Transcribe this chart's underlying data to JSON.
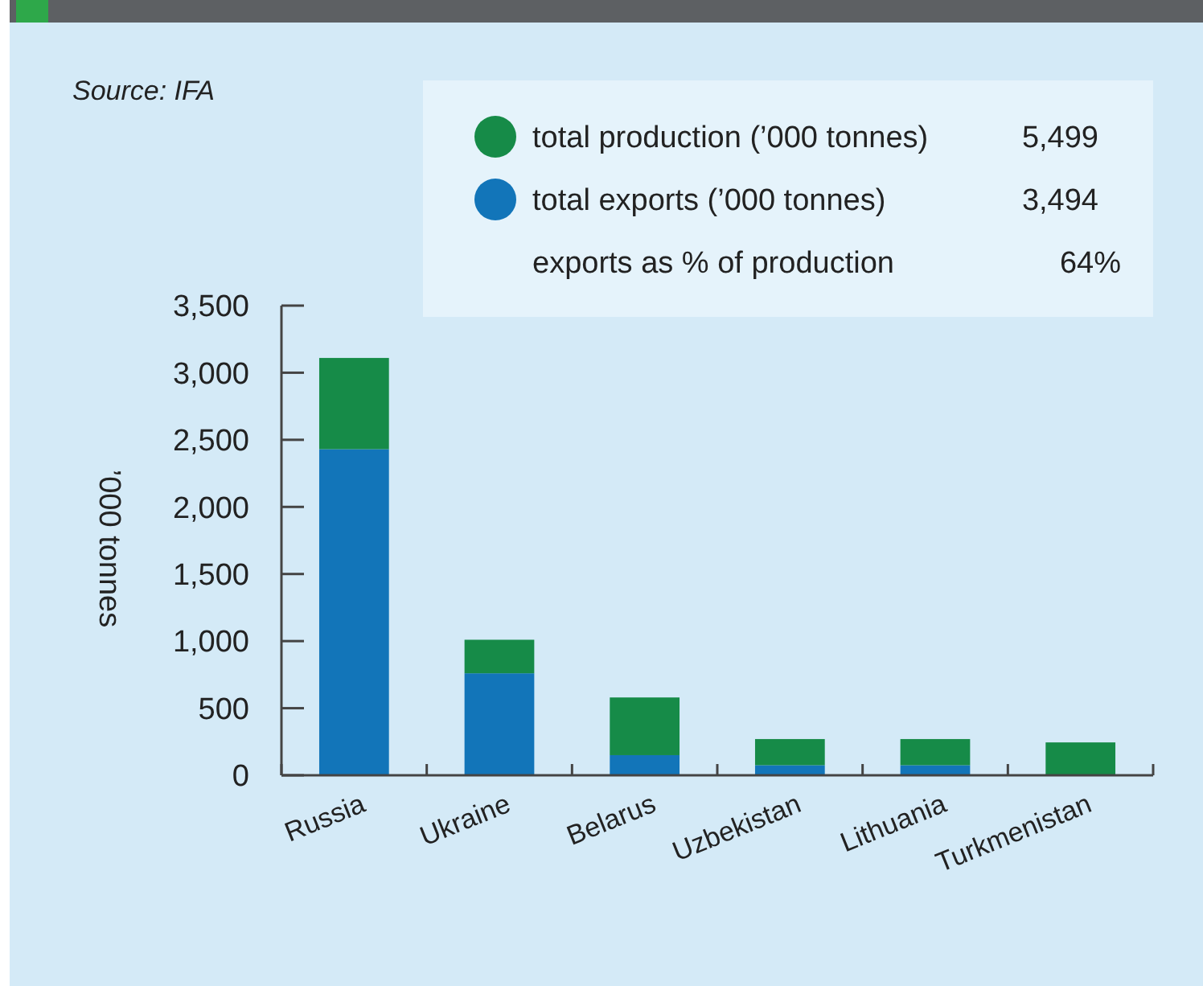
{
  "chart_data": {
    "type": "bar",
    "stacked": true,
    "ylabel": "’000 tonnes",
    "categories": [
      "Russia",
      "Ukraine",
      "Belarus",
      "Uzbekistan",
      "Lithuania",
      "Turkmenistan"
    ],
    "series": [
      {
        "name": "total exports (’000 tonnes)",
        "color": "#1275b9",
        "values": [
          2430,
          760,
          150,
          75,
          75,
          0
        ]
      },
      {
        "name": "total production (’000 tonnes)",
        "color": "#168b48",
        "values": [
          680,
          250,
          430,
          195,
          195,
          245
        ]
      }
    ],
    "ylim": [
      0,
      3500
    ],
    "yticks": [
      {
        "value": 0,
        "label": "0"
      },
      {
        "value": 500,
        "label": "500"
      },
      {
        "value": 1000,
        "label": "1,000"
      },
      {
        "value": 1500,
        "label": "1,500"
      },
      {
        "value": 2000,
        "label": "2,000"
      },
      {
        "value": 2500,
        "label": "2,500"
      },
      {
        "value": 3000,
        "label": "3,000"
      },
      {
        "value": 3500,
        "label": "3,500"
      }
    ],
    "grid": false,
    "legend": "top right",
    "annotations": [
      "Source: IFA",
      "5,499",
      "3,494",
      "exports as % of production",
      "64%"
    ]
  }
}
